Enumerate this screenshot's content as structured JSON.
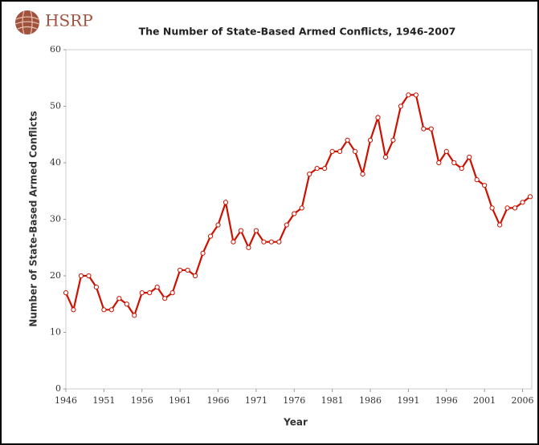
{
  "brand": "HSRP",
  "chart_data": {
    "type": "line",
    "title": "The Number of State-Based Armed Conflicts, 1946-2007",
    "x_label": "Year",
    "y_label": "Number of State-Based Armed Conflicts",
    "x": [
      1946,
      1947,
      1948,
      1949,
      1950,
      1951,
      1952,
      1953,
      1954,
      1955,
      1956,
      1957,
      1958,
      1959,
      1960,
      1961,
      1962,
      1963,
      1964,
      1965,
      1966,
      1967,
      1968,
      1969,
      1970,
      1971,
      1972,
      1973,
      1974,
      1975,
      1976,
      1977,
      1978,
      1979,
      1980,
      1981,
      1982,
      1983,
      1984,
      1985,
      1986,
      1987,
      1988,
      1989,
      1990,
      1991,
      1992,
      1993,
      1994,
      1995,
      1996,
      1997,
      1998,
      1999,
      2000,
      2001,
      2002,
      2003,
      2004,
      2005,
      2006,
      2007
    ],
    "series": [
      {
        "name": "State-Based Armed Conflicts",
        "color": "#cc1100",
        "values": [
          17,
          14,
          20,
          20,
          18,
          14,
          14,
          16,
          15,
          13,
          17,
          17,
          18,
          16,
          17,
          21,
          21,
          20,
          24,
          27,
          29,
          33,
          26,
          28,
          25,
          28,
          26,
          26,
          26,
          29,
          31,
          32,
          38,
          39,
          39,
          42,
          42,
          44,
          42,
          38,
          44,
          48,
          41,
          44,
          50,
          52,
          52,
          46,
          46,
          40,
          42,
          40,
          39,
          41,
          37,
          36,
          32,
          29,
          32,
          32,
          33,
          34
        ]
      }
    ],
    "xlim": [
      1946,
      2007
    ],
    "xticks": [
      1946,
      1951,
      1956,
      1961,
      1966,
      1971,
      1976,
      1981,
      1986,
      1991,
      1996,
      2001,
      2006
    ],
    "ylim": [
      0,
      60
    ],
    "yticks": [
      0,
      10,
      20,
      30,
      40,
      50,
      60
    ],
    "grid": false
  }
}
